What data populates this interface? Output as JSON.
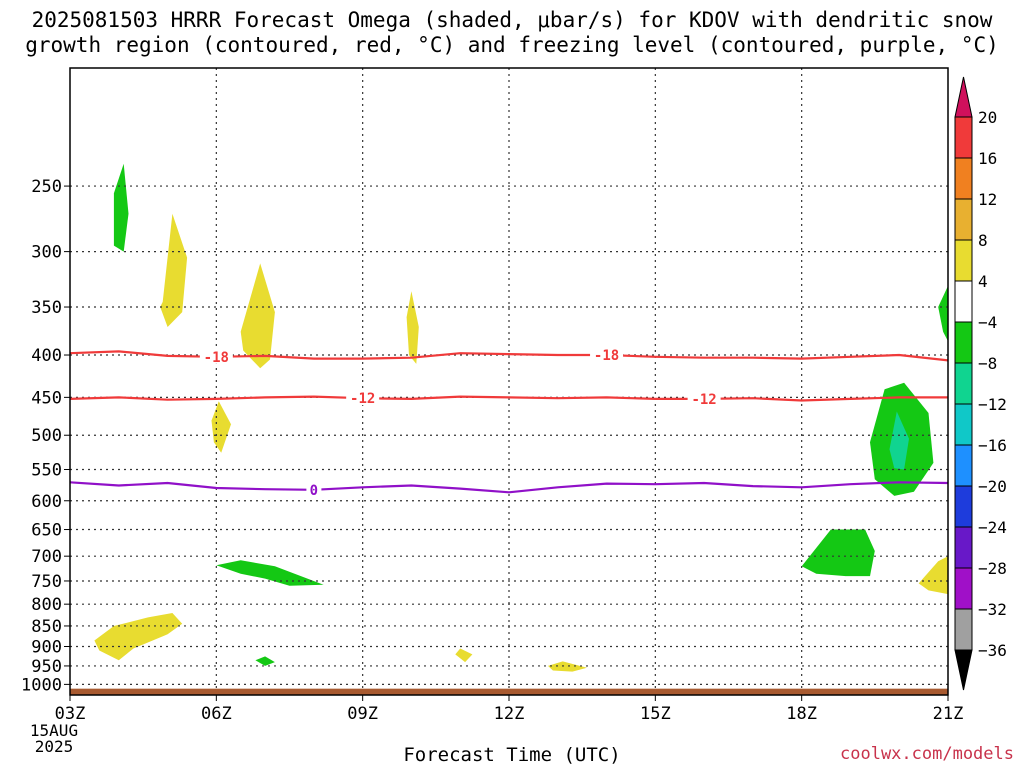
{
  "title_line1": "2025081503 HRRR Forecast Omega (shaded, μbar/s) for KDOV with dendritic snow",
  "title_line2": "growth region (contoured, red, °C) and freezing level (contoured, purple, °C)",
  "credit": "coolwx.com/models",
  "chart_data": {
    "type": "time-height contour",
    "xlabel": "Forecast Time (UTC)",
    "x_ticks": [
      "03Z",
      "06Z",
      "09Z",
      "12Z",
      "15Z",
      "18Z",
      "21Z"
    ],
    "x_start_label": [
      "15AUG",
      "2025"
    ],
    "x_range_hours": [
      3,
      21
    ],
    "y_ticks": [
      250,
      300,
      350,
      400,
      450,
      500,
      550,
      600,
      650,
      700,
      750,
      800,
      850,
      900,
      950,
      1000
    ],
    "y_range_mb": [
      1030,
      180
    ],
    "grid": true,
    "colorbar": {
      "labels": [
        "20",
        "16",
        "12",
        "8",
        "4",
        "−4",
        "−8",
        "−12",
        "−16",
        "−20",
        "−24",
        "−28",
        "−32",
        "−36"
      ],
      "colors": [
        "#d0105c",
        "#f03a3a",
        "#f08020",
        "#e8b030",
        "#e8dc30",
        "#ffffff",
        "#14c814",
        "#10d490",
        "#10c8c8",
        "#1e90ff",
        "#1e3cdc",
        "#6818c8",
        "#a010c8",
        "#a0a0a0",
        "#000000"
      ]
    },
    "contours": [
      {
        "label": "-18",
        "color": "#f03a3a",
        "points": [
          [
            3,
            398
          ],
          [
            4,
            396
          ],
          [
            5,
            401
          ],
          [
            6,
            402
          ],
          [
            7,
            401
          ],
          [
            8,
            404
          ],
          [
            9,
            404
          ],
          [
            10,
            403
          ],
          [
            11,
            398
          ],
          [
            12,
            399
          ],
          [
            13,
            400
          ],
          [
            14,
            400
          ],
          [
            15,
            402
          ],
          [
            16,
            403
          ],
          [
            17,
            403
          ],
          [
            18,
            404
          ],
          [
            19,
            402
          ],
          [
            20,
            400
          ],
          [
            21,
            406
          ]
        ],
        "label_at": [
          6,
          14
        ]
      },
      {
        "label": "-12",
        "color": "#f03a3a",
        "points": [
          [
            3,
            452
          ],
          [
            4,
            450
          ],
          [
            5,
            453
          ],
          [
            6,
            452
          ],
          [
            7,
            450
          ],
          [
            8,
            449
          ],
          [
            9,
            451
          ],
          [
            10,
            452
          ],
          [
            11,
            449
          ],
          [
            12,
            450
          ],
          [
            13,
            451
          ],
          [
            14,
            450
          ],
          [
            15,
            452
          ],
          [
            16,
            452
          ],
          [
            17,
            451
          ],
          [
            18,
            454
          ],
          [
            19,
            452
          ],
          [
            20,
            450
          ],
          [
            21,
            450
          ]
        ],
        "label_at": [
          9,
          16
        ]
      },
      {
        "label": "0",
        "color": "#9010c8",
        "points": [
          [
            3,
            570
          ],
          [
            4,
            575
          ],
          [
            5,
            571
          ],
          [
            6,
            579
          ],
          [
            7,
            581
          ],
          [
            8,
            582
          ],
          [
            9,
            578
          ],
          [
            10,
            575
          ],
          [
            11,
            580
          ],
          [
            12,
            586
          ],
          [
            13,
            578
          ],
          [
            14,
            572
          ],
          [
            15,
            573
          ],
          [
            16,
            571
          ],
          [
            17,
            576
          ],
          [
            18,
            578
          ],
          [
            19,
            573
          ],
          [
            20,
            570
          ],
          [
            21,
            571
          ]
        ],
        "label_at": [
          8
        ]
      }
    ],
    "omega_regions": [
      {
        "color": "#14c814",
        "points": [
          [
            3.9,
            255
          ],
          [
            4.1,
            235
          ],
          [
            4.2,
            270
          ],
          [
            4.1,
            300
          ],
          [
            3.9,
            295
          ]
        ]
      },
      {
        "color": "#e8dc30",
        "points": [
          [
            4.9,
            345
          ],
          [
            5.1,
            270
          ],
          [
            5.4,
            305
          ],
          [
            5.3,
            355
          ],
          [
            5.0,
            370
          ],
          [
            4.85,
            350
          ]
        ]
      },
      {
        "color": "#e8dc30",
        "points": [
          [
            6.5,
            375
          ],
          [
            6.9,
            310
          ],
          [
            7.2,
            355
          ],
          [
            7.1,
            405
          ],
          [
            6.9,
            415
          ],
          [
            6.55,
            395
          ]
        ]
      },
      {
        "color": "#e8dc30",
        "points": [
          [
            9.9,
            360
          ],
          [
            10.0,
            335
          ],
          [
            10.15,
            370
          ],
          [
            10.1,
            410
          ],
          [
            9.95,
            400
          ]
        ]
      },
      {
        "color": "#e8dc30",
        "points": [
          [
            5.9,
            480
          ],
          [
            6.05,
            455
          ],
          [
            6.3,
            485
          ],
          [
            6.1,
            525
          ],
          [
            5.95,
            510
          ]
        ]
      },
      {
        "color": "#14c814",
        "points": [
          [
            19.4,
            510
          ],
          [
            19.7,
            440
          ],
          [
            20.1,
            432
          ],
          [
            20.6,
            470
          ],
          [
            20.7,
            540
          ],
          [
            20.3,
            585
          ],
          [
            19.9,
            592
          ],
          [
            19.5,
            565
          ]
        ]
      },
      {
        "color": "#10d490",
        "points": [
          [
            19.8,
            520
          ],
          [
            19.95,
            468
          ],
          [
            20.2,
            505
          ],
          [
            20.1,
            550
          ],
          [
            19.9,
            548
          ]
        ]
      },
      {
        "color": "#14c814",
        "points": [
          [
            20.8,
            350
          ],
          [
            21.0,
            330
          ],
          [
            21.0,
            385
          ],
          [
            20.9,
            375
          ]
        ]
      },
      {
        "color": "#14c814",
        "points": [
          [
            6.0,
            718
          ],
          [
            6.5,
            708
          ],
          [
            7.2,
            720
          ],
          [
            8.2,
            758
          ],
          [
            7.5,
            760
          ],
          [
            7.0,
            745
          ],
          [
            6.5,
            735
          ]
        ]
      },
      {
        "color": "#14c814",
        "points": [
          [
            18.0,
            720
          ],
          [
            18.6,
            650
          ],
          [
            19.3,
            650
          ],
          [
            19.5,
            690
          ],
          [
            19.4,
            740
          ],
          [
            18.9,
            740
          ],
          [
            18.3,
            735
          ]
        ]
      },
      {
        "color": "#e8dc30",
        "points": [
          [
            20.4,
            755
          ],
          [
            20.8,
            710
          ],
          [
            21.0,
            700
          ],
          [
            21.0,
            778
          ],
          [
            20.6,
            770
          ]
        ]
      },
      {
        "color": "#e8dc30",
        "points": [
          [
            3.5,
            885
          ],
          [
            3.9,
            850
          ],
          [
            4.6,
            830
          ],
          [
            5.1,
            820
          ],
          [
            5.3,
            845
          ],
          [
            5.0,
            870
          ],
          [
            4.3,
            905
          ],
          [
            4.0,
            935
          ],
          [
            3.6,
            910
          ]
        ]
      },
      {
        "color": "#14c814",
        "points": [
          [
            6.8,
            935
          ],
          [
            7.0,
            925
          ],
          [
            7.2,
            940
          ],
          [
            7.0,
            950
          ]
        ]
      },
      {
        "color": "#e8dc30",
        "points": [
          [
            10.9,
            920
          ],
          [
            11.0,
            905
          ],
          [
            11.25,
            920
          ],
          [
            11.1,
            940
          ]
        ]
      },
      {
        "color": "#e8dc30",
        "points": [
          [
            12.8,
            950
          ],
          [
            13.1,
            938
          ],
          [
            13.6,
            955
          ],
          [
            13.3,
            965
          ],
          [
            12.9,
            962
          ]
        ]
      }
    ],
    "ground_color": "#a85a30"
  }
}
